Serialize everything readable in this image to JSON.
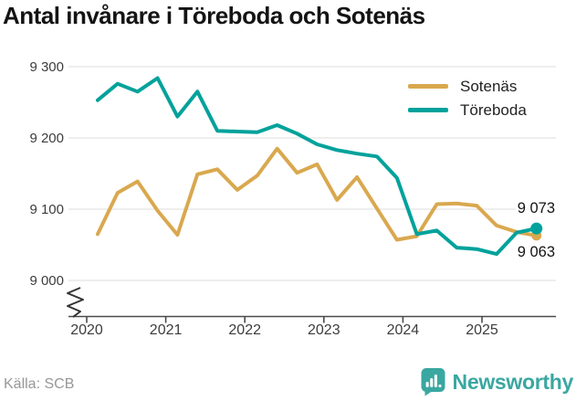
{
  "title": "Antal invånare i Töreboda och Sotenäs",
  "source": "Källa: SCB",
  "branding": {
    "logo_text": "Newsworthy",
    "logo_icon": "bar-chart-speech-bubble"
  },
  "colors": {
    "sotenas": "#d9a84f",
    "toreboda": "#00a29b",
    "grid": "#e4e4e4",
    "axis": "#4a4a4a",
    "tick_text": "#3d3d3d",
    "title_text": "#141414",
    "source_text": "#979797",
    "brand": "#3aa7a1",
    "end_label_text": "#141414"
  },
  "legend": [
    {
      "label": "Sotenäs",
      "color": "#d9a84f"
    },
    {
      "label": "Töreboda",
      "color": "#00a29b"
    }
  ],
  "end_labels": {
    "toreboda": "9 073",
    "sotenas": "9 063"
  },
  "chart_data": {
    "type": "line",
    "title": "Antal invånare i Töreboda och Sotenäs",
    "x": [
      "2020 Q1",
      "2020 Q2",
      "2020 Q3",
      "2020 Q4",
      "2021 Q1",
      "2021 Q2",
      "2021 Q3",
      "2021 Q4",
      "2022 Q1",
      "2022 Q2",
      "2022 Q3",
      "2022 Q4",
      "2023 Q1",
      "2023 Q2",
      "2023 Q3",
      "2023 Q4",
      "2024 Q1",
      "2024 Q2",
      "2024 Q3",
      "2024 Q4",
      "2025 Q1",
      "2025 Q2",
      "2025 Q3"
    ],
    "series": [
      {
        "name": "Sotenäs",
        "color": "#d9a84f",
        "values": [
          9065,
          9123,
          9139,
          9098,
          9064,
          9149,
          9156,
          9127,
          9147,
          9185,
          9151,
          9163,
          9113,
          9145,
          9101,
          9057,
          9062,
          9107,
          9108,
          9105,
          9077,
          9068,
          9063
        ]
      },
      {
        "name": "Töreboda",
        "color": "#00a29b",
        "values": [
          9253,
          9276,
          9265,
          9284,
          9230,
          9265,
          9210,
          9209,
          9208,
          9218,
          9206,
          9191,
          9183,
          9178,
          9174,
          9144,
          9065,
          9070,
          9046,
          9044,
          9037,
          9067,
          9073
        ]
      }
    ],
    "xticklabels": [
      "2020",
      "2021",
      "2022",
      "2023",
      "2024",
      "2025"
    ],
    "yticklabels": [
      "9 300",
      "9 200",
      "9 100",
      "9 000"
    ],
    "yticks": [
      9300,
      9200,
      9100,
      9000
    ],
    "ylim_display": [
      9000,
      9300
    ],
    "axis_break": true,
    "grid": "horizontal",
    "legend_position": "top-right",
    "xlabel": "",
    "ylabel": ""
  }
}
